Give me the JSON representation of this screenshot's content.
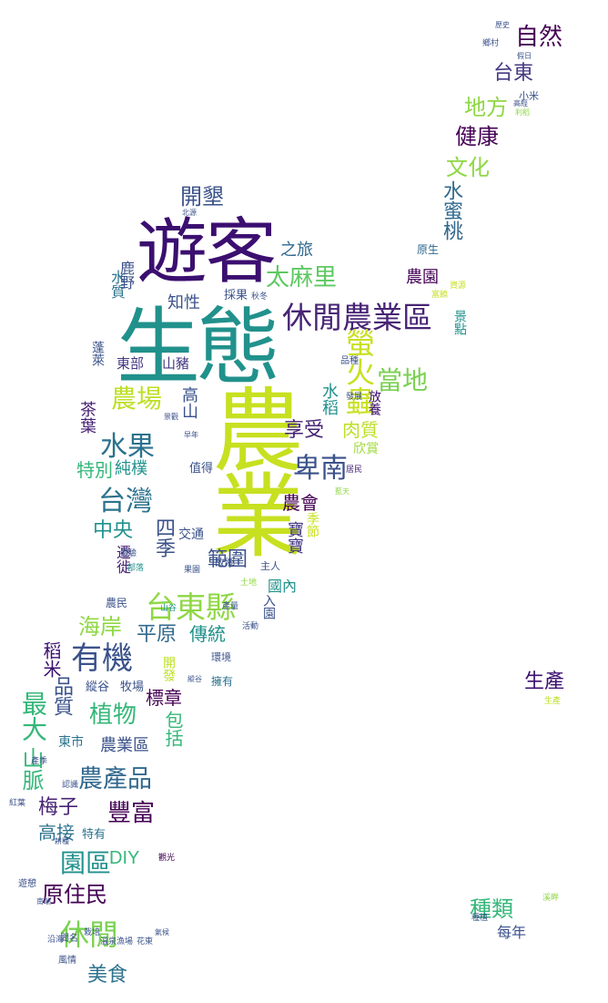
{
  "colors": {
    "background": "#ffffff",
    "palette": [
      "#440154",
      "#3b528b",
      "#21918c",
      "#35b779",
      "#8fd744",
      "#c7e020"
    ]
  },
  "words": [
    "生態",
    "遊客",
    "農業",
    "休閒農業區",
    "台東縣",
    "台灣",
    "水果",
    "卑南",
    "農場",
    "螢火蟲",
    "當地",
    "太麻里",
    "開墾",
    "文化",
    "健康",
    "地方",
    "台東",
    "自然",
    "水蜜桃",
    "農園",
    "有機",
    "植物",
    "農產品",
    "豐富",
    "最大",
    "山脈",
    "梅子",
    "高接",
    "園區",
    "原住民",
    "休閒",
    "美食",
    "種類",
    "每年",
    "生產",
    "DIY",
    "海岸",
    "平原",
    "傳統",
    "中央",
    "四季",
    "範圍",
    "農會",
    "享受",
    "肉質",
    "欣賞",
    "特別",
    "純樸",
    "標章",
    "農業區",
    "包括",
    "稻米",
    "品質",
    "知性",
    "之旅",
    "東部",
    "山豬",
    "高山",
    "水稻",
    "茶葉",
    "蓬萊",
    "水質",
    "鹿野",
    "開發",
    "擁有",
    "國內",
    "東市",
    "入園",
    "寶寶",
    "季節",
    "原生",
    "主人",
    "交通",
    "值得",
    "遷徙",
    "景點",
    "放養",
    "採果",
    "生產",
    "富饒",
    "縱谷",
    "牧場",
    "環境",
    "土地",
    "農民",
    "資源",
    "活動",
    "居民",
    "認識",
    "觀光",
    "風情",
    "聞名",
    "溫泉",
    "紅葉",
    "遊憩",
    "部落",
    "鄉村",
    "假日",
    "歷史",
    "產季",
    "特有",
    "景觀",
    "栽培",
    "體驗",
    "漁場",
    "縱谷",
    "故鄉",
    "果園",
    "小米",
    "藍天",
    "山谷",
    "早年",
    "發展",
    "耕種",
    "品種",
    "高經",
    "產量",
    "種植",
    "溪畔",
    "秋冬",
    "沿海",
    "北源",
    "利稻",
    "氣候",
    "花東",
    "南端"
  ]
}
